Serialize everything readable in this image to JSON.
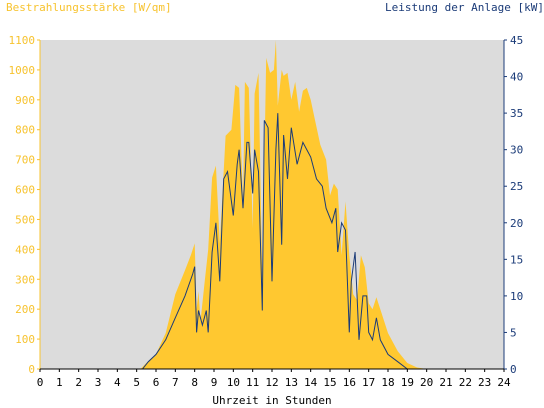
{
  "chart_data": {
    "type": "area",
    "left_axis_title": "Bestrahlungsstärke [W/qm]",
    "right_axis_title": "Leistung der Anlage [kW]",
    "xlabel": "Uhrzeit in Stunden",
    "x_range": [
      0,
      24
    ],
    "x_ticks": [
      "0",
      "1",
      "2",
      "3",
      "4",
      "5",
      "6",
      "7",
      "8",
      "9",
      "10",
      "11",
      "12",
      "13",
      "14",
      "15",
      "16",
      "17",
      "18",
      "19",
      "20",
      "21",
      "22",
      "23",
      "24"
    ],
    "left_axis": {
      "range": [
        0,
        1100
      ],
      "ticks": [
        "0",
        "100",
        "200",
        "300",
        "400",
        "500",
        "600",
        "700",
        "800",
        "900",
        "1000",
        "1100"
      ]
    },
    "right_axis": {
      "range": [
        0,
        45
      ],
      "ticks": [
        "0",
        "5",
        "10",
        "15",
        "20",
        "25",
        "30",
        "35",
        "40",
        "45"
      ]
    },
    "grid": false,
    "colors": {
      "irradiance": "#ffc830",
      "power": "#1b3b78",
      "plot_background": "#dcdcdc",
      "left_axis": "#f7c32f",
      "right_axis": "#1b3b78"
    },
    "series": [
      {
        "name": "Bestrahlungsstärke [W/qm]",
        "axis": "left",
        "x": [
          0,
          5.2,
          5.5,
          6,
          6.5,
          7,
          7.5,
          7.8,
          8.0,
          8.1,
          8.2,
          8.3,
          8.5,
          8.7,
          8.9,
          9.1,
          9.3,
          9.6,
          9.9,
          10.1,
          10.3,
          10.5,
          10.6,
          10.8,
          11.0,
          11.1,
          11.3,
          11.5,
          11.7,
          11.9,
          12.1,
          12.2,
          12.3,
          12.5,
          12.6,
          12.8,
          13.0,
          13.2,
          13.4,
          13.6,
          13.8,
          14.0,
          14.2,
          14.5,
          14.8,
          15.0,
          15.2,
          15.4,
          15.6,
          15.8,
          16.0,
          16.2,
          16.4,
          16.6,
          16.8,
          17.0,
          17.2,
          17.4,
          17.6,
          18.0,
          18.5,
          19.0,
          19.5,
          20.0,
          24
        ],
        "values": [
          0,
          0,
          20,
          50,
          120,
          250,
          330,
          380,
          420,
          200,
          260,
          160,
          280,
          400,
          640,
          680,
          420,
          780,
          800,
          950,
          940,
          560,
          960,
          940,
          470,
          920,
          990,
          300,
          1040,
          990,
          1000,
          1100,
          880,
          1000,
          980,
          990,
          900,
          960,
          860,
          930,
          940,
          900,
          840,
          750,
          700,
          580,
          620,
          600,
          380,
          560,
          380,
          250,
          230,
          380,
          340,
          220,
          200,
          240,
          200,
          120,
          60,
          20,
          5,
          0,
          0
        ]
      },
      {
        "name": "Leistung der Anlage [kW]",
        "axis": "right",
        "x": [
          0,
          5.3,
          5.6,
          6,
          6.5,
          7,
          7.5,
          7.9,
          8.0,
          8.1,
          8.2,
          8.4,
          8.6,
          8.7,
          8.9,
          9.1,
          9.3,
          9.5,
          9.7,
          10.0,
          10.2,
          10.3,
          10.5,
          10.7,
          10.8,
          11.0,
          11.1,
          11.3,
          11.5,
          11.6,
          11.8,
          12.0,
          12.2,
          12.3,
          12.5,
          12.6,
          12.8,
          13.0,
          13.3,
          13.6,
          14.0,
          14.3,
          14.6,
          14.8,
          15.1,
          15.3,
          15.4,
          15.6,
          15.8,
          16.0,
          16.1,
          16.3,
          16.5,
          16.7,
          16.9,
          17.0,
          17.2,
          17.4,
          17.6,
          18.0,
          18.5,
          19.0,
          19.5,
          20.0,
          24
        ],
        "values": [
          0,
          0,
          1,
          2,
          4,
          7,
          10,
          13,
          14,
          5,
          8,
          6,
          8,
          5,
          16,
          20,
          12,
          26,
          27,
          21,
          28,
          30,
          22,
          31,
          31,
          24,
          30,
          27,
          8,
          34,
          33,
          12,
          30,
          35,
          17,
          32,
          26,
          33,
          28,
          31,
          29,
          26,
          25,
          22,
          20,
          22,
          16,
          20,
          19,
          5,
          12,
          16,
          4,
          10,
          10,
          5,
          4,
          7,
          4,
          2,
          1,
          0,
          0,
          0,
          0
        ]
      }
    ]
  }
}
